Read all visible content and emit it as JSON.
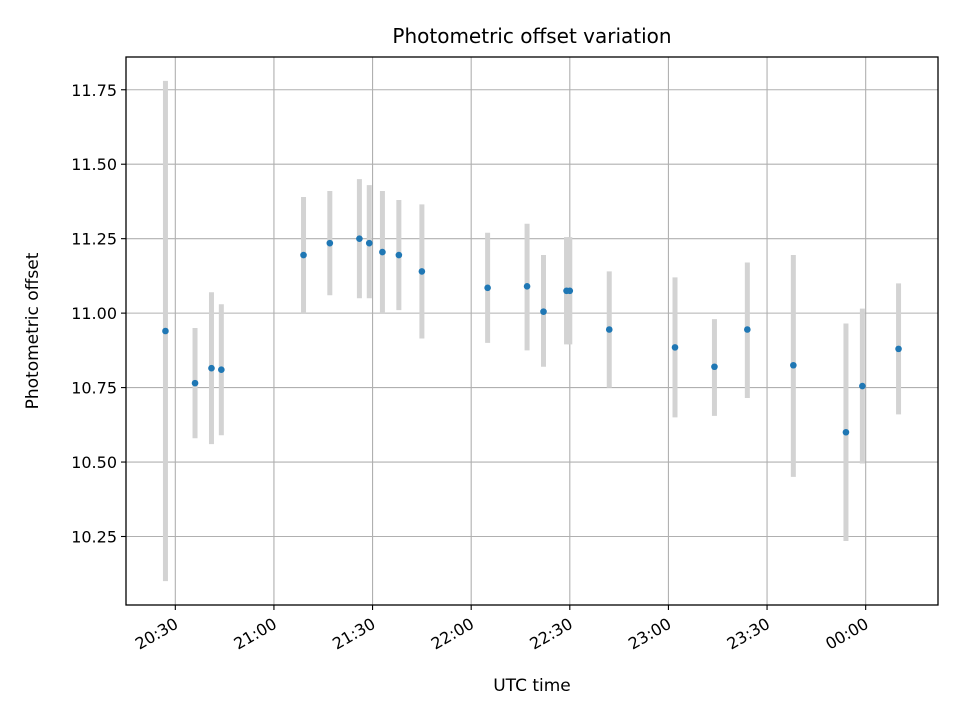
{
  "chart_data": {
    "type": "scatter",
    "title": "Photometric offset variation",
    "xlabel": "UTC time",
    "ylabel": "Photometric offset",
    "grid": true,
    "xlim": [
      "20:15",
      "00:22"
    ],
    "ylim": [
      10.02,
      11.86
    ],
    "x_ticks": [
      "20:30",
      "21:00",
      "21:30",
      "22:00",
      "22:30",
      "23:00",
      "23:30",
      "00:00"
    ],
    "y_ticks": [
      "10.25",
      "10.50",
      "10.75",
      "11.00",
      "11.25",
      "11.50",
      "11.75"
    ],
    "marker_color": "#1f77b4",
    "errorbar_color": "#d3d3d3",
    "series": [
      {
        "points": [
          {
            "x": "20:27",
            "y": 10.94,
            "lo": 10.1,
            "hi": 11.78
          },
          {
            "x": "20:36",
            "y": 10.765,
            "lo": 10.58,
            "hi": 10.95
          },
          {
            "x": "20:41",
            "y": 10.815,
            "lo": 10.56,
            "hi": 11.07
          },
          {
            "x": "20:44",
            "y": 10.81,
            "lo": 10.59,
            "hi": 11.03
          },
          {
            "x": "21:09",
            "y": 11.195,
            "lo": 11.0,
            "hi": 11.39
          },
          {
            "x": "21:17",
            "y": 11.235,
            "lo": 11.06,
            "hi": 11.41
          },
          {
            "x": "21:26",
            "y": 11.25,
            "lo": 11.05,
            "hi": 11.45
          },
          {
            "x": "21:29",
            "y": 11.235,
            "lo": 11.05,
            "hi": 11.43
          },
          {
            "x": "21:33",
            "y": 11.205,
            "lo": 11.0,
            "hi": 11.41
          },
          {
            "x": "21:38",
            "y": 11.195,
            "lo": 11.01,
            "hi": 11.38
          },
          {
            "x": "21:45",
            "y": 11.14,
            "lo": 10.915,
            "hi": 11.365
          },
          {
            "x": "22:05",
            "y": 11.085,
            "lo": 10.9,
            "hi": 11.27
          },
          {
            "x": "22:17",
            "y": 11.09,
            "lo": 10.875,
            "hi": 11.3
          },
          {
            "x": "22:22",
            "y": 11.005,
            "lo": 10.82,
            "hi": 11.195
          },
          {
            "x": "22:29",
            "y": 11.075,
            "lo": 10.895,
            "hi": 11.255
          },
          {
            "x": "22:30",
            "y": 11.075,
            "lo": 10.895,
            "hi": 11.255
          },
          {
            "x": "22:42",
            "y": 10.945,
            "lo": 10.75,
            "hi": 11.14
          },
          {
            "x": "23:02",
            "y": 10.885,
            "lo": 10.65,
            "hi": 11.12
          },
          {
            "x": "23:14",
            "y": 10.82,
            "lo": 10.655,
            "hi": 10.98
          },
          {
            "x": "23:24",
            "y": 10.945,
            "lo": 10.715,
            "hi": 11.17
          },
          {
            "x": "23:38",
            "y": 10.825,
            "lo": 10.45,
            "hi": 11.195
          },
          {
            "x": "23:54",
            "y": 10.6,
            "lo": 10.235,
            "hi": 10.965
          },
          {
            "x": "23:59",
            "y": 10.755,
            "lo": 10.495,
            "hi": 11.015
          },
          {
            "x": "00:10",
            "y": 10.88,
            "lo": 10.66,
            "hi": 11.1
          }
        ]
      }
    ]
  }
}
